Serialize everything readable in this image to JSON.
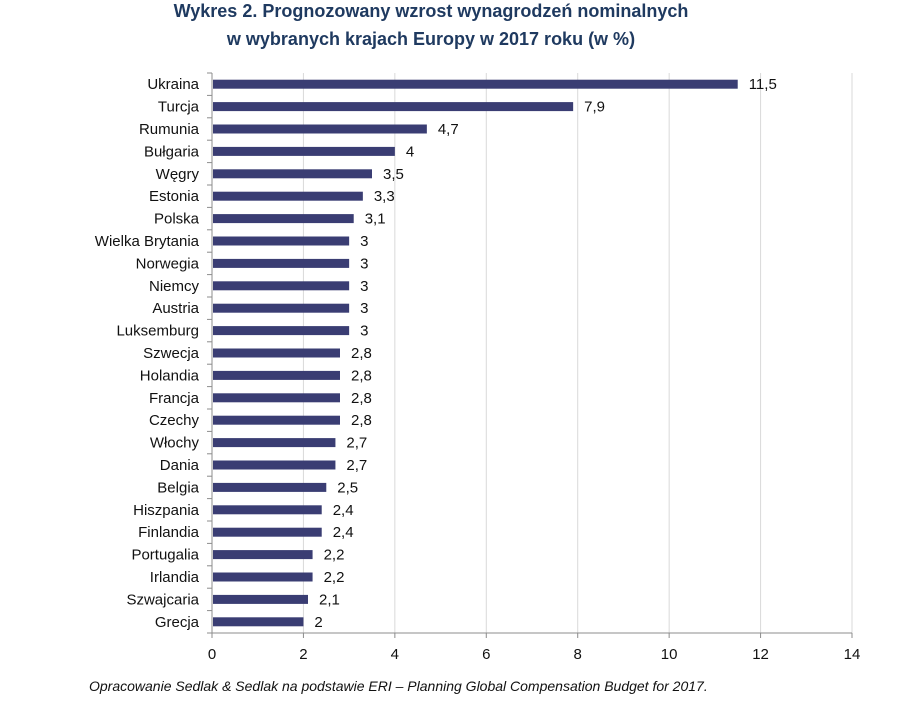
{
  "chart_data": {
    "type": "bar",
    "orientation": "horizontal",
    "title_line1": "Wykres 2. Prognozowany wzrost wynagrodzeń nominalnych",
    "title_line2": "w wybranych krajach Europy w 2017 roku (w %)",
    "categories": [
      "Ukraina",
      "Turcja",
      "Rumunia",
      "Bułgaria",
      "Węgry",
      "Estonia",
      "Polska",
      "Wielka Brytania",
      "Norwegia",
      "Niemcy",
      "Austria",
      "Luksemburg",
      "Szwecja",
      "Holandia",
      "Francja",
      "Czechy",
      "Włochy",
      "Dania",
      "Belgia",
      "Hiszpania",
      "Finlandia",
      "Portugalia",
      "Irlandia",
      "Szwajcaria",
      "Grecja"
    ],
    "values": [
      11.5,
      7.9,
      4.7,
      4,
      3.5,
      3.3,
      3.1,
      3,
      3,
      3,
      3,
      3,
      2.8,
      2.8,
      2.8,
      2.8,
      2.7,
      2.7,
      2.5,
      2.4,
      2.4,
      2.2,
      2.2,
      2.1,
      2
    ],
    "value_labels": [
      "11,5",
      "7,9",
      "4,7",
      "4",
      "3,5",
      "3,3",
      "3,1",
      "3",
      "3",
      "3",
      "3",
      "3",
      "2,8",
      "2,8",
      "2,8",
      "2,8",
      "2,7",
      "2,7",
      "2,5",
      "2,4",
      "2,4",
      "2,2",
      "2,2",
      "2,1",
      "2"
    ],
    "xlim": [
      0,
      14
    ],
    "xticks": [
      0,
      2,
      4,
      6,
      8,
      10,
      12,
      14
    ],
    "grid": true,
    "bar_color": "#3a3d73",
    "xlabel": "",
    "ylabel": ""
  },
  "footer": "Opracowanie Sedlak & Sedlak na podstawie ERI – Planning Global Compensation Budget for 2017."
}
